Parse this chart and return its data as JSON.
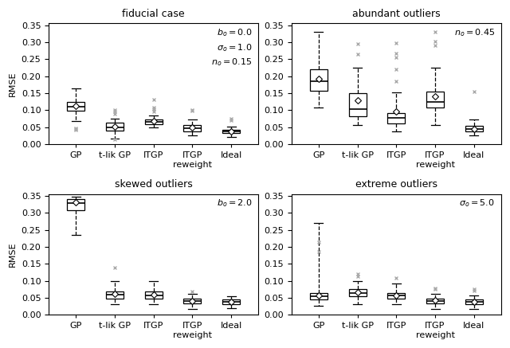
{
  "panels": [
    {
      "title": "fiducial case",
      "annotation": "$b_o = 0.0$\n$\\sigma_o = 1.0$\n$n_o = 0.15$",
      "ylim": [
        0.0,
        0.355
      ],
      "yticks": [
        0.0,
        0.05,
        0.1,
        0.15,
        0.2,
        0.25,
        0.3,
        0.35
      ],
      "methods": [
        "GP",
        "t-lik GP",
        "ITGP",
        "ITGP\nreweight",
        "Ideal"
      ],
      "boxes": [
        {
          "med": 0.11,
          "q1": 0.098,
          "q3": 0.125,
          "whislo": 0.068,
          "whishi": 0.165,
          "fliers": [
            0.045,
            0.042,
            0.047
          ]
        },
        {
          "med": 0.05,
          "q1": 0.04,
          "q3": 0.062,
          "whislo": 0.016,
          "whishi": 0.075,
          "fliers": [
            0.09,
            0.095,
            0.1,
            0.013
          ]
        },
        {
          "med": 0.065,
          "q1": 0.058,
          "q3": 0.073,
          "whislo": 0.048,
          "whishi": 0.085,
          "fliers": [
            0.097,
            0.103,
            0.108,
            0.13
          ]
        },
        {
          "med": 0.047,
          "q1": 0.038,
          "q3": 0.055,
          "whislo": 0.025,
          "whishi": 0.073,
          "fliers": [
            0.098,
            0.1
          ]
        },
        {
          "med": 0.037,
          "q1": 0.032,
          "q3": 0.043,
          "whislo": 0.022,
          "whishi": 0.052,
          "fliers": [
            0.07,
            0.074
          ]
        }
      ],
      "means": [
        0.112,
        0.052,
        0.067,
        0.048,
        0.038
      ]
    },
    {
      "title": "abundant outliers",
      "annotation": "$n_o = 0.45$",
      "ylim": [
        0.0,
        0.355
      ],
      "yticks": [
        0.0,
        0.05,
        0.1,
        0.15,
        0.2,
        0.25,
        0.3,
        0.35
      ],
      "methods": [
        "GP",
        "t-lik GP",
        "ITGP",
        "ITGP\nreweight",
        "Ideal"
      ],
      "boxes": [
        {
          "med": 0.185,
          "q1": 0.158,
          "q3": 0.22,
          "whislo": 0.108,
          "whishi": 0.33,
          "fliers": []
        },
        {
          "med": 0.104,
          "q1": 0.082,
          "q3": 0.15,
          "whislo": 0.055,
          "whishi": 0.225,
          "fliers": [
            0.265,
            0.295
          ]
        },
        {
          "med": 0.076,
          "q1": 0.06,
          "q3": 0.092,
          "whislo": 0.038,
          "whishi": 0.152,
          "fliers": [
            0.185,
            0.22,
            0.255,
            0.268,
            0.298
          ]
        },
        {
          "med": 0.125,
          "q1": 0.108,
          "q3": 0.155,
          "whislo": 0.055,
          "whishi": 0.225,
          "fliers": [
            0.291,
            0.302,
            0.33
          ]
        },
        {
          "med": 0.044,
          "q1": 0.038,
          "q3": 0.053,
          "whislo": 0.025,
          "whishi": 0.073,
          "fliers": [
            0.155
          ]
        }
      ],
      "means": [
        0.192,
        0.128,
        0.096,
        0.14,
        0.045
      ]
    },
    {
      "title": "skewed outliers",
      "annotation": "$b_o = 2.0$",
      "ylim": [
        0.0,
        0.355
      ],
      "yticks": [
        0.0,
        0.05,
        0.1,
        0.15,
        0.2,
        0.25,
        0.3,
        0.35
      ],
      "methods": [
        "GP",
        "t-lik GP",
        "ITGP",
        "ITGP\nreweight",
        "Ideal"
      ],
      "boxes": [
        {
          "med": 0.328,
          "q1": 0.308,
          "q3": 0.34,
          "whislo": 0.236,
          "whishi": 0.348,
          "fliers": []
        },
        {
          "med": 0.06,
          "q1": 0.048,
          "q3": 0.068,
          "whislo": 0.03,
          "whishi": 0.098,
          "fliers": [
            0.14
          ]
        },
        {
          "med": 0.058,
          "q1": 0.047,
          "q3": 0.068,
          "whislo": 0.032,
          "whishi": 0.098,
          "fliers": []
        },
        {
          "med": 0.04,
          "q1": 0.033,
          "q3": 0.047,
          "whislo": 0.018,
          "whishi": 0.062,
          "fliers": [
            0.068
          ]
        },
        {
          "med": 0.037,
          "q1": 0.031,
          "q3": 0.044,
          "whislo": 0.02,
          "whishi": 0.055,
          "fliers": []
        }
      ],
      "means": [
        0.33,
        0.062,
        0.059,
        0.041,
        0.038
      ]
    },
    {
      "title": "extreme outliers",
      "annotation": "$\\sigma_o = 5.0$",
      "ylim": [
        0.0,
        0.355
      ],
      "yticks": [
        0.0,
        0.05,
        0.1,
        0.15,
        0.2,
        0.25,
        0.3,
        0.35
      ],
      "methods": [
        "GP",
        "t-lik GP",
        "ITGP",
        "ITGP\nreweight",
        "Ideal"
      ],
      "boxes": [
        {
          "med": 0.055,
          "q1": 0.045,
          "q3": 0.065,
          "whislo": 0.027,
          "whishi": 0.27,
          "fliers": [
            0.185,
            0.215
          ]
        },
        {
          "med": 0.065,
          "q1": 0.055,
          "q3": 0.075,
          "whislo": 0.03,
          "whishi": 0.098,
          "fliers": [
            0.113,
            0.12
          ]
        },
        {
          "med": 0.057,
          "q1": 0.047,
          "q3": 0.065,
          "whislo": 0.03,
          "whishi": 0.093,
          "fliers": [
            0.108
          ]
        },
        {
          "med": 0.04,
          "q1": 0.033,
          "q3": 0.048,
          "whislo": 0.018,
          "whishi": 0.062,
          "fliers": [
            0.075,
            0.078
          ]
        },
        {
          "med": 0.037,
          "q1": 0.03,
          "q3": 0.045,
          "whislo": 0.018,
          "whishi": 0.058,
          "fliers": [
            0.07,
            0.075
          ]
        }
      ],
      "means": [
        0.058,
        0.067,
        0.057,
        0.042,
        0.038
      ]
    }
  ],
  "box_color": "white",
  "box_edgecolor": "black",
  "median_color": "black",
  "whisker_color": "black",
  "flier_color": "#aaaaaa",
  "mean_marker": "D",
  "mean_color": "white",
  "mean_edgecolor": "black",
  "figsize": [
    6.4,
    4.37
  ],
  "dpi": 100,
  "ylabel": "RMSE",
  "title_fontsize": 9,
  "label_fontsize": 8,
  "tick_fontsize": 8,
  "ann_fontsize": 8
}
